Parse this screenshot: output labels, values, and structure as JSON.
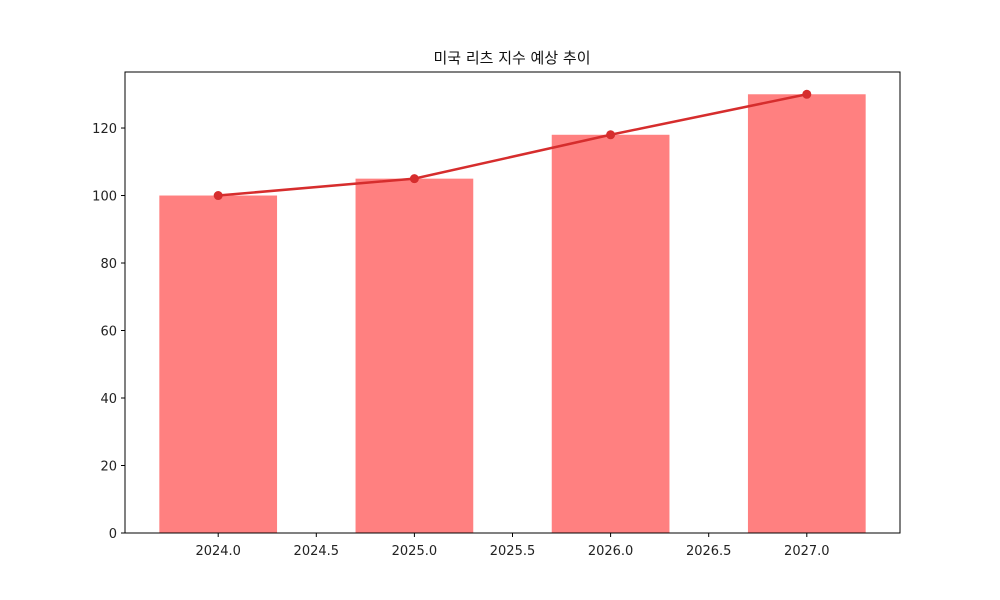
{
  "chart_data": {
    "type": "bar",
    "title": "미국 리츠 지수 예상 추이",
    "xlabel": "",
    "ylabel": "",
    "categories": [
      2024,
      2025,
      2026,
      2027
    ],
    "series": [
      {
        "name": "bar",
        "type": "bar",
        "values": [
          100,
          105,
          118,
          130
        ],
        "color": "#ff8080"
      },
      {
        "name": "line",
        "type": "line",
        "values": [
          100,
          105,
          118,
          130
        ],
        "color": "#d62d2d",
        "marker": "circle"
      }
    ],
    "xlim": [
      2023.525,
      2027.475
    ],
    "ylim": [
      0,
      136.6
    ],
    "xticks": [
      "2024.0",
      "2024.5",
      "2025.0",
      "2025.5",
      "2026.0",
      "2026.5",
      "2027.0"
    ],
    "xtick_values": [
      2024.0,
      2024.5,
      2025.0,
      2025.5,
      2026.0,
      2026.5,
      2027.0
    ],
    "yticks": [
      "0",
      "20",
      "40",
      "60",
      "80",
      "100",
      "120"
    ],
    "ytick_values": [
      0,
      20,
      40,
      60,
      80,
      100,
      120
    ],
    "bar_width": 0.6,
    "grid": false,
    "legend": null
  }
}
